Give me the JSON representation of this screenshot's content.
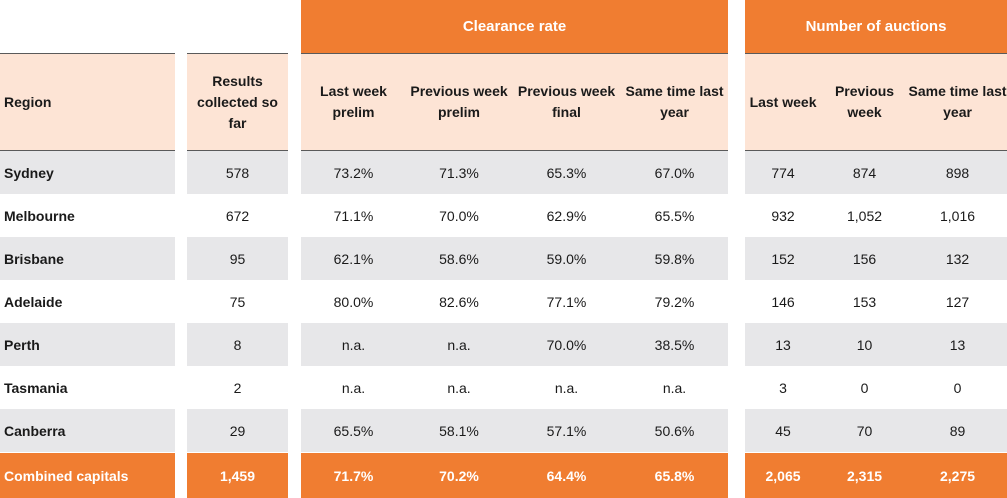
{
  "groups": {
    "clearance_rate": "Clearance rate",
    "number_of_auctions": "Number of auctions"
  },
  "headers": {
    "region": "Region",
    "results_collected": "Results collected so far",
    "last_week_prelim": "Last week prelim",
    "previous_week_prelim": "Previous week prelim",
    "previous_week_final": "Previous week final",
    "same_time_last_year_rate": "Same time last year",
    "last_week": "Last week",
    "previous_week": "Previous week",
    "same_time_last_year_auctions": "Same time last year"
  },
  "rows": [
    {
      "region": "Sydney",
      "results": "578",
      "lw_prelim": "73.2%",
      "pw_prelim": "71.3%",
      "pw_final": "65.3%",
      "ly_rate": "67.0%",
      "lw_auctions": "774",
      "pw_auctions": "874",
      "ly_auctions": "898"
    },
    {
      "region": "Melbourne",
      "results": "672",
      "lw_prelim": "71.1%",
      "pw_prelim": "70.0%",
      "pw_final": "62.9%",
      "ly_rate": "65.5%",
      "lw_auctions": "932",
      "pw_auctions": "1,052",
      "ly_auctions": "1,016"
    },
    {
      "region": "Brisbane",
      "results": "95",
      "lw_prelim": "62.1%",
      "pw_prelim": "58.6%",
      "pw_final": "59.0%",
      "ly_rate": "59.8%",
      "lw_auctions": "152",
      "pw_auctions": "156",
      "ly_auctions": "132"
    },
    {
      "region": "Adelaide",
      "results": "75",
      "lw_prelim": "80.0%",
      "pw_prelim": "82.6%",
      "pw_final": "77.1%",
      "ly_rate": "79.2%",
      "lw_auctions": "146",
      "pw_auctions": "153",
      "ly_auctions": "127"
    },
    {
      "region": "Perth",
      "results": "8",
      "lw_prelim": "n.a.",
      "pw_prelim": "n.a.",
      "pw_final": "70.0%",
      "ly_rate": "38.5%",
      "lw_auctions": "13",
      "pw_auctions": "10",
      "ly_auctions": "13"
    },
    {
      "region": "Tasmania",
      "results": "2",
      "lw_prelim": "n.a.",
      "pw_prelim": "n.a.",
      "pw_final": "n.a.",
      "ly_rate": "n.a.",
      "lw_auctions": "3",
      "pw_auctions": "0",
      "ly_auctions": "0"
    },
    {
      "region": "Canberra",
      "results": "29",
      "lw_prelim": "65.5%",
      "pw_prelim": "58.1%",
      "pw_final": "57.1%",
      "ly_rate": "50.6%",
      "lw_auctions": "45",
      "pw_auctions": "70",
      "ly_auctions": "89"
    }
  ],
  "total": {
    "region": "Combined capitals",
    "results": "1,459",
    "lw_prelim": "71.7%",
    "pw_prelim": "70.2%",
    "pw_final": "64.4%",
    "ly_rate": "65.8%",
    "lw_auctions": "2,065",
    "pw_auctions": "2,315",
    "ly_auctions": "2,275"
  },
  "colors": {
    "accent": "#f07d31",
    "header_bg": "#fde4d5",
    "row_shade": "#e7e7e9"
  }
}
